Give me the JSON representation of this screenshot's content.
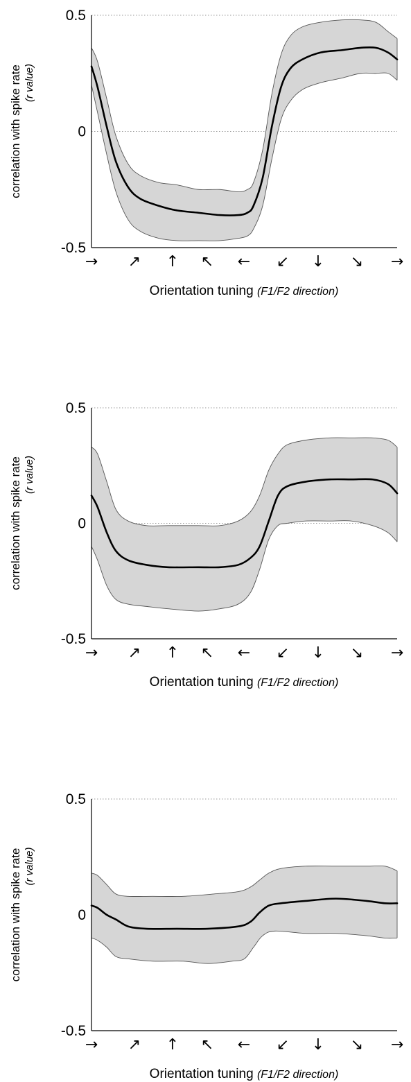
{
  "chart_data": [
    {
      "type": "line",
      "x_ticks": [
        "→",
        "↗",
        "↑",
        "↖",
        "←",
        "↙",
        "↓",
        "↘",
        "→"
      ],
      "xlabel": "Orientation tuning",
      "xlabel_sub": "(F1/F2 direction)",
      "ylabel": "correlation with spike rate",
      "ylabel_sub": "(r value)",
      "yticks": [
        "0.5",
        "0",
        "-0.5"
      ],
      "ylim": [
        -0.5,
        0.5
      ],
      "grid": "dotted horizontal lines at 0.5 and 0",
      "series": [
        {
          "values": [
            [
              0,
              0.28
            ],
            [
              0.02,
              0.19
            ],
            [
              0.05,
              0.02
            ],
            [
              0.08,
              -0.13
            ],
            [
              0.12,
              -0.24
            ],
            [
              0.16,
              -0.29
            ],
            [
              0.22,
              -0.32
            ],
            [
              0.28,
              -0.34
            ],
            [
              0.35,
              -0.35
            ],
            [
              0.42,
              -0.36
            ],
            [
              0.48,
              -0.36
            ],
            [
              0.51,
              -0.35
            ],
            [
              0.53,
              -0.32
            ],
            [
              0.56,
              -0.2
            ],
            [
              0.59,
              0.02
            ],
            [
              0.62,
              0.19
            ],
            [
              0.65,
              0.27
            ],
            [
              0.69,
              0.31
            ],
            [
              0.75,
              0.34
            ],
            [
              0.82,
              0.35
            ],
            [
              0.88,
              0.36
            ],
            [
              0.93,
              0.36
            ],
            [
              0.97,
              0.34
            ],
            [
              1,
              0.31
            ]
          ],
          "band_upper": [
            [
              0,
              0.36
            ],
            [
              0.02,
              0.3
            ],
            [
              0.05,
              0.14
            ],
            [
              0.08,
              -0.02
            ],
            [
              0.12,
              -0.14
            ],
            [
              0.16,
              -0.19
            ],
            [
              0.22,
              -0.22
            ],
            [
              0.28,
              -0.23
            ],
            [
              0.35,
              -0.25
            ],
            [
              0.42,
              -0.25
            ],
            [
              0.48,
              -0.26
            ],
            [
              0.51,
              -0.25
            ],
            [
              0.53,
              -0.22
            ],
            [
              0.56,
              -0.08
            ],
            [
              0.59,
              0.16
            ],
            [
              0.62,
              0.33
            ],
            [
              0.65,
              0.41
            ],
            [
              0.69,
              0.45
            ],
            [
              0.75,
              0.47
            ],
            [
              0.82,
              0.48
            ],
            [
              0.88,
              0.48
            ],
            [
              0.93,
              0.47
            ],
            [
              0.97,
              0.43
            ],
            [
              1,
              0.4
            ]
          ],
          "band_lower": [
            [
              0,
              0.2
            ],
            [
              0.02,
              0.08
            ],
            [
              0.05,
              -0.1
            ],
            [
              0.08,
              -0.26
            ],
            [
              0.12,
              -0.38
            ],
            [
              0.16,
              -0.43
            ],
            [
              0.22,
              -0.46
            ],
            [
              0.28,
              -0.47
            ],
            [
              0.35,
              -0.47
            ],
            [
              0.42,
              -0.47
            ],
            [
              0.48,
              -0.46
            ],
            [
              0.51,
              -0.45
            ],
            [
              0.53,
              -0.42
            ],
            [
              0.56,
              -0.32
            ],
            [
              0.59,
              -0.12
            ],
            [
              0.62,
              0.05
            ],
            [
              0.65,
              0.13
            ],
            [
              0.69,
              0.18
            ],
            [
              0.75,
              0.21
            ],
            [
              0.82,
              0.23
            ],
            [
              0.88,
              0.25
            ],
            [
              0.93,
              0.25
            ],
            [
              0.97,
              0.25
            ],
            [
              1,
              0.22
            ]
          ]
        }
      ]
    },
    {
      "type": "line",
      "x_ticks": [
        "→",
        "↗",
        "↑",
        "↖",
        "←",
        "↙",
        "↓",
        "↘",
        "→"
      ],
      "xlabel": "Orientation tuning",
      "xlabel_sub": "(F1/F2 direction)",
      "ylabel": "correlation with spike rate",
      "ylabel_sub": "(r value)",
      "yticks": [
        "0.5",
        "0",
        "-0.5"
      ],
      "ylim": [
        -0.5,
        0.5
      ],
      "grid": "dotted horizontal lines at 0.5 and 0",
      "series": [
        {
          "values": [
            [
              0,
              0.12
            ],
            [
              0.02,
              0.07
            ],
            [
              0.05,
              -0.04
            ],
            [
              0.08,
              -0.12
            ],
            [
              0.12,
              -0.16
            ],
            [
              0.18,
              -0.18
            ],
            [
              0.25,
              -0.19
            ],
            [
              0.35,
              -0.19
            ],
            [
              0.42,
              -0.19
            ],
            [
              0.48,
              -0.18
            ],
            [
              0.52,
              -0.15
            ],
            [
              0.55,
              -0.1
            ],
            [
              0.58,
              0.01
            ],
            [
              0.61,
              0.12
            ],
            [
              0.64,
              0.16
            ],
            [
              0.7,
              0.18
            ],
            [
              0.78,
              0.19
            ],
            [
              0.85,
              0.19
            ],
            [
              0.92,
              0.19
            ],
            [
              0.97,
              0.17
            ],
            [
              1,
              0.13
            ]
          ],
          "band_upper": [
            [
              0,
              0.33
            ],
            [
              0.02,
              0.3
            ],
            [
              0.05,
              0.18
            ],
            [
              0.08,
              0.06
            ],
            [
              0.12,
              0.01
            ],
            [
              0.18,
              -0.01
            ],
            [
              0.25,
              -0.01
            ],
            [
              0.35,
              -0.01
            ],
            [
              0.42,
              -0.01
            ],
            [
              0.48,
              0.01
            ],
            [
              0.52,
              0.05
            ],
            [
              0.55,
              0.12
            ],
            [
              0.58,
              0.23
            ],
            [
              0.61,
              0.3
            ],
            [
              0.64,
              0.34
            ],
            [
              0.7,
              0.36
            ],
            [
              0.78,
              0.37
            ],
            [
              0.85,
              0.37
            ],
            [
              0.92,
              0.37
            ],
            [
              0.97,
              0.36
            ],
            [
              1,
              0.33
            ]
          ],
          "band_lower": [
            [
              0,
              -0.1
            ],
            [
              0.02,
              -0.16
            ],
            [
              0.05,
              -0.27
            ],
            [
              0.08,
              -0.33
            ],
            [
              0.12,
              -0.35
            ],
            [
              0.18,
              -0.36
            ],
            [
              0.25,
              -0.37
            ],
            [
              0.35,
              -0.38
            ],
            [
              0.42,
              -0.37
            ],
            [
              0.48,
              -0.35
            ],
            [
              0.52,
              -0.3
            ],
            [
              0.55,
              -0.2
            ],
            [
              0.58,
              -0.07
            ],
            [
              0.61,
              -0.01
            ],
            [
              0.64,
              0
            ],
            [
              0.7,
              0.01
            ],
            [
              0.78,
              0.01
            ],
            [
              0.85,
              0.01
            ],
            [
              0.92,
              -0.01
            ],
            [
              0.97,
              -0.04
            ],
            [
              1,
              -0.08
            ]
          ]
        }
      ]
    },
    {
      "type": "line",
      "x_ticks": [
        "→",
        "↗",
        "↑",
        "↖",
        "←",
        "↙",
        "↓",
        "↘",
        "→"
      ],
      "xlabel": "Orientation tuning",
      "xlabel_sub": "(F1/F2 direction)",
      "ylabel": "correlation with spike rate",
      "ylabel_sub": "(r value)",
      "yticks": [
        "0.5",
        "0",
        "-0.5"
      ],
      "ylim": [
        -0.5,
        0.5
      ],
      "grid": "dotted horizontal lines at 0.5 and 0",
      "series": [
        {
          "values": [
            [
              0,
              0.04
            ],
            [
              0.02,
              0.03
            ],
            [
              0.05,
              0
            ],
            [
              0.08,
              -0.02
            ],
            [
              0.12,
              -0.05
            ],
            [
              0.18,
              -0.06
            ],
            [
              0.28,
              -0.06
            ],
            [
              0.38,
              -0.06
            ],
            [
              0.48,
              -0.05
            ],
            [
              0.52,
              -0.03
            ],
            [
              0.55,
              0.01
            ],
            [
              0.58,
              0.04
            ],
            [
              0.62,
              0.05
            ],
            [
              0.7,
              0.06
            ],
            [
              0.8,
              0.07
            ],
            [
              0.9,
              0.06
            ],
            [
              0.96,
              0.05
            ],
            [
              1,
              0.05
            ]
          ],
          "band_upper": [
            [
              0,
              0.18
            ],
            [
              0.02,
              0.17
            ],
            [
              0.05,
              0.13
            ],
            [
              0.08,
              0.09
            ],
            [
              0.12,
              0.08
            ],
            [
              0.2,
              0.08
            ],
            [
              0.3,
              0.08
            ],
            [
              0.4,
              0.09
            ],
            [
              0.48,
              0.1
            ],
            [
              0.52,
              0.12
            ],
            [
              0.55,
              0.15
            ],
            [
              0.58,
              0.18
            ],
            [
              0.62,
              0.2
            ],
            [
              0.7,
              0.21
            ],
            [
              0.8,
              0.21
            ],
            [
              0.9,
              0.21
            ],
            [
              0.96,
              0.21
            ],
            [
              1,
              0.19
            ]
          ],
          "band_lower": [
            [
              0,
              -0.1
            ],
            [
              0.02,
              -0.11
            ],
            [
              0.05,
              -0.14
            ],
            [
              0.08,
              -0.18
            ],
            [
              0.12,
              -0.19
            ],
            [
              0.2,
              -0.2
            ],
            [
              0.3,
              -0.2
            ],
            [
              0.38,
              -0.21
            ],
            [
              0.46,
              -0.2
            ],
            [
              0.5,
              -0.19
            ],
            [
              0.53,
              -0.14
            ],
            [
              0.56,
              -0.09
            ],
            [
              0.6,
              -0.07
            ],
            [
              0.7,
              -0.08
            ],
            [
              0.8,
              -0.08
            ],
            [
              0.9,
              -0.09
            ],
            [
              0.96,
              -0.1
            ],
            [
              1,
              -0.1
            ]
          ]
        }
      ]
    }
  ]
}
